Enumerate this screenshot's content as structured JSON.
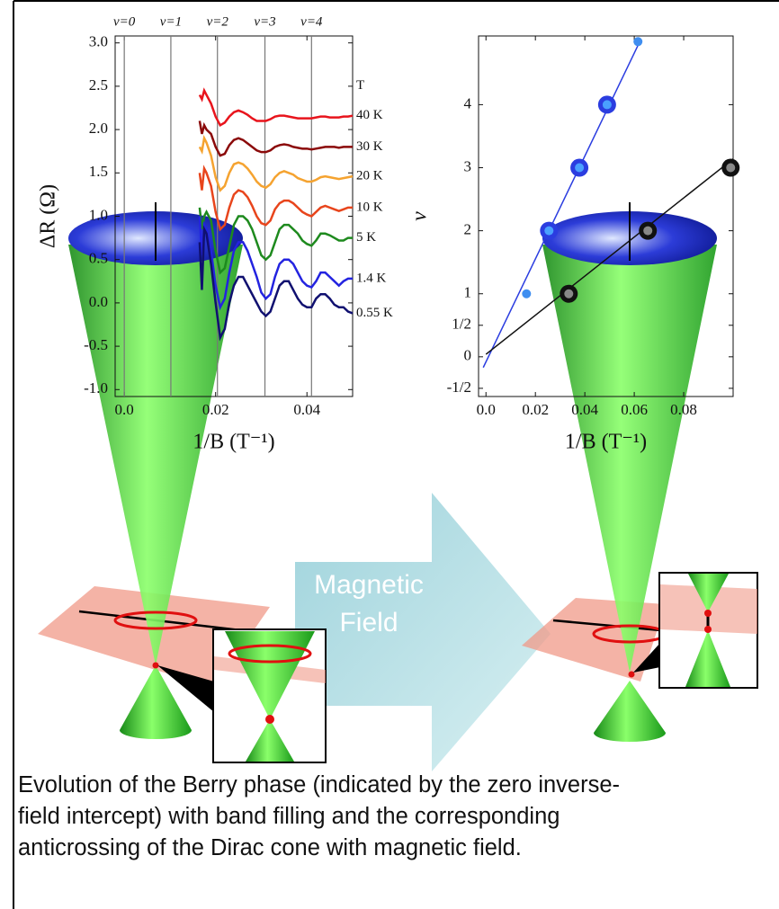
{
  "chart_data": [
    {
      "type": "line",
      "ylabel": "ΔR (Ω)",
      "xlabel": "1/B (T⁻¹)",
      "legend_title": "T",
      "xlim": [
        -0.002,
        0.05
      ],
      "ylim": [
        -1.08,
        3.08
      ],
      "xticks": [
        {
          "value": 0,
          "label": "0.0"
        },
        0.02,
        0.04
      ],
      "yticks": [
        {
          "value": 3,
          "label": "3.0"
        },
        2.5,
        {
          "value": 2,
          "label": "2.0"
        },
        1.5,
        {
          "value": 1,
          "label": "1.0"
        },
        0.5,
        {
          "value": 0,
          "label": "0.0"
        },
        -0.5,
        {
          "value": -1,
          "label": "-1.0"
        }
      ],
      "annotations": [
        {
          "text": "ν=0",
          "x": 0
        },
        {
          "text": "ν=1",
          "x": 0.0102
        },
        {
          "text": "ν=2",
          "x": 0.0204
        },
        {
          "text": "ν=3",
          "x": 0.0308
        },
        {
          "text": "ν=4",
          "x": 0.041
        }
      ],
      "x": [
        0.0165,
        0.017,
        0.0175,
        0.018,
        0.019,
        0.02,
        0.021,
        0.022,
        0.023,
        0.024,
        0.025,
        0.026,
        0.027,
        0.028,
        0.029,
        0.03,
        0.031,
        0.032,
        0.033,
        0.034,
        0.035,
        0.036,
        0.037,
        0.038,
        0.039,
        0.04,
        0.041,
        0.042,
        0.043,
        0.044,
        0.045,
        0.046,
        0.047,
        0.048,
        0.049,
        0.05
      ],
      "series": [
        {
          "name": "40 K",
          "color": "#e8141c",
          "values": [
            2.4,
            2.35,
            2.45,
            2.4,
            2.3,
            2.15,
            2.05,
            2.08,
            2.15,
            2.2,
            2.22,
            2.2,
            2.17,
            2.13,
            2.1,
            2.1,
            2.1,
            2.12,
            2.15,
            2.16,
            2.16,
            2.15,
            2.14,
            2.13,
            2.13,
            2.13,
            2.13,
            2.14,
            2.15,
            2.15,
            2.14,
            2.14,
            2.14,
            2.15,
            2.15,
            2.16
          ]
        },
        {
          "name": "30 K",
          "color": "#8b0a0a",
          "values": [
            2.1,
            1.95,
            2.05,
            2.0,
            1.95,
            1.8,
            1.7,
            1.72,
            1.82,
            1.88,
            1.9,
            1.88,
            1.84,
            1.8,
            1.76,
            1.74,
            1.74,
            1.76,
            1.8,
            1.82,
            1.83,
            1.82,
            1.8,
            1.79,
            1.78,
            1.78,
            1.77,
            1.78,
            1.79,
            1.8,
            1.8,
            1.8,
            1.79,
            1.8,
            1.8,
            1.8
          ]
        },
        {
          "name": "20 K",
          "color": "#f5a330",
          "values": [
            1.8,
            1.75,
            1.9,
            1.85,
            1.7,
            1.45,
            1.3,
            1.35,
            1.5,
            1.6,
            1.62,
            1.6,
            1.55,
            1.48,
            1.4,
            1.35,
            1.33,
            1.37,
            1.45,
            1.5,
            1.52,
            1.5,
            1.48,
            1.44,
            1.42,
            1.4,
            1.4,
            1.42,
            1.45,
            1.46,
            1.45,
            1.44,
            1.43,
            1.44,
            1.45,
            1.46
          ]
        },
        {
          "name": "10 K",
          "color": "#e8451c",
          "values": [
            1.5,
            1.3,
            1.55,
            1.5,
            1.35,
            1.05,
            0.85,
            0.9,
            1.1,
            1.25,
            1.3,
            1.28,
            1.22,
            1.12,
            1.0,
            0.92,
            0.9,
            0.95,
            1.08,
            1.15,
            1.18,
            1.18,
            1.15,
            1.1,
            1.05,
            1.02,
            1.0,
            1.05,
            1.1,
            1.12,
            1.1,
            1.08,
            1.06,
            1.08,
            1.1,
            1.1
          ]
        },
        {
          "name": "5 K",
          "color": "#1e8a1e",
          "values": [
            1.1,
            0.85,
            1.0,
            1.05,
            0.95,
            0.6,
            0.35,
            0.4,
            0.65,
            0.9,
            1.0,
            1.0,
            0.95,
            0.85,
            0.7,
            0.55,
            0.5,
            0.55,
            0.7,
            0.85,
            0.9,
            0.9,
            0.85,
            0.8,
            0.72,
            0.68,
            0.66,
            0.72,
            0.8,
            0.8,
            0.78,
            0.75,
            0.72,
            0.72,
            0.75,
            0.75
          ]
        },
        {
          "name": "1.4 K",
          "color": "#2323e0",
          "values": [
            1.0,
            0.55,
            0.9,
            0.85,
            0.6,
            0.2,
            -0.05,
            0.05,
            0.35,
            0.6,
            0.7,
            0.7,
            0.6,
            0.45,
            0.3,
            0.12,
            0.05,
            0.1,
            0.3,
            0.45,
            0.5,
            0.5,
            0.45,
            0.35,
            0.25,
            0.2,
            0.18,
            0.25,
            0.35,
            0.35,
            0.3,
            0.25,
            0.2,
            0.25,
            0.28,
            0.28
          ]
        },
        {
          "name": "0.55 K",
          "color": "#101070",
          "values": [
            0.7,
            0.15,
            0.85,
            0.8,
            0.45,
            0.0,
            -0.4,
            -0.3,
            0.0,
            0.2,
            0.3,
            0.3,
            0.2,
            0.1,
            0.0,
            -0.1,
            -0.15,
            -0.1,
            0.05,
            0.2,
            0.25,
            0.25,
            0.15,
            0.05,
            -0.02,
            -0.05,
            -0.05,
            0.05,
            0.1,
            0.1,
            0.05,
            -0.02,
            -0.05,
            -0.05,
            -0.1,
            -0.12
          ]
        }
      ]
    },
    {
      "type": "scatter",
      "ylabel": "ν",
      "xlabel": "1/B (T⁻¹)",
      "xlim": [
        -0.003,
        0.1
      ],
      "ylim": [
        -0.63,
        5.09
      ],
      "xticks": [
        {
          "value": 0,
          "label": "0.0"
        },
        0.02,
        0.04,
        0.06,
        0.08
      ],
      "yticks": [
        {
          "value": -0.5,
          "label": "-1/2"
        },
        0,
        {
          "value": 0.5,
          "label": "1/2"
        },
        1,
        2,
        3,
        4
      ],
      "series": [
        {
          "mode": "line",
          "color": "#2b3de0",
          "x": [
            -0.0011,
            0.0626
          ],
          "values": [
            -0.17,
            5.03
          ]
        },
        {
          "mode": "line",
          "color": "#111111",
          "x": [
            0,
            0.1
          ],
          "values": [
            0.04,
            3.14
          ]
        },
        {
          "mode": "ring",
          "color": "#2b3de0",
          "inner_color": "#4aa0ff",
          "x": [
            0.0255,
            0.0378,
            0.049
          ],
          "values": [
            2,
            3,
            4
          ]
        },
        {
          "mode": "dot",
          "color": "#3f8ef0",
          "x": [
            0.0164,
            0.0615
          ],
          "values": [
            1,
            5
          ]
        },
        {
          "mode": "ring",
          "color": "#111111",
          "inner_color": "#888888",
          "x": [
            0.0335,
            0.0655,
            0.099
          ],
          "values": [
            1,
            2,
            3
          ]
        }
      ]
    }
  ],
  "diagram": {
    "arrow_label": "Magnetic Field"
  },
  "caption": "Evolution of the Berry phase (indicated by the zero inverse-field intercept) with band filling and the corresponding anticrossing of the Dirac cone with magnetic field."
}
